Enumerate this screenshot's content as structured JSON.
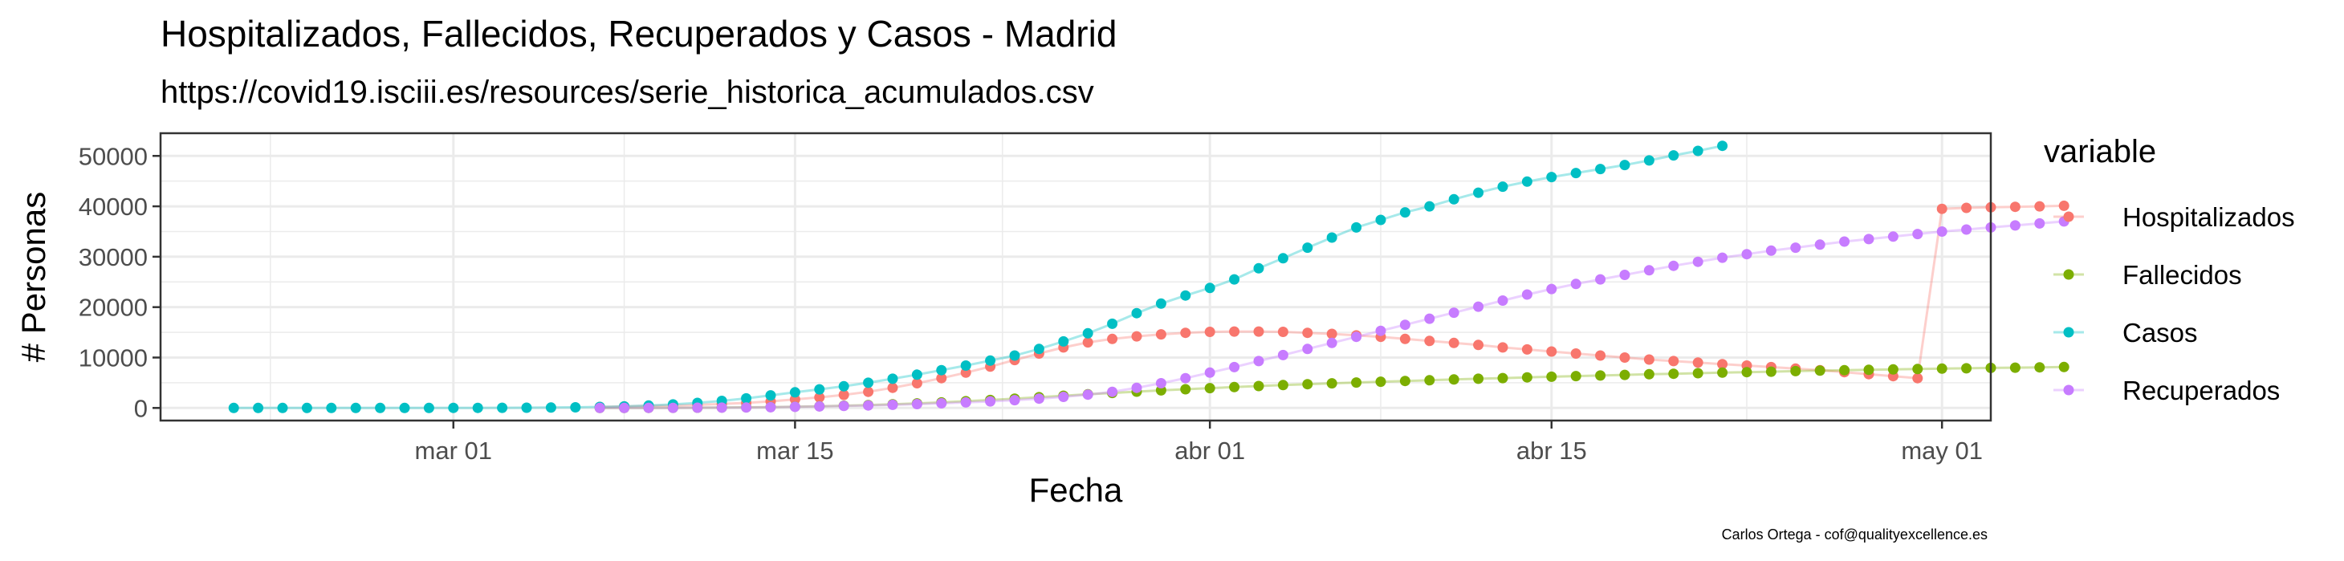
{
  "chart_data": {
    "type": "line",
    "title": "Hospitalizados, Fallecidos, Recuperados y Casos - Madrid",
    "subtitle": "https://covid19.isciii.es/resources/serie_historica_acumulados.csv",
    "xlabel": "Fecha",
    "ylabel": "# Personas",
    "caption": "Carlos Ortega - cof@qualityexcellence.es",
    "legend": {
      "title": "variable",
      "position": "right"
    },
    "grid": true,
    "x_ticks": [
      {
        "date": "2020-03-01",
        "label": "mar 01"
      },
      {
        "date": "2020-03-15",
        "label": "mar 15"
      },
      {
        "date": "2020-04-01",
        "label": "abr 01"
      },
      {
        "date": "2020-04-15",
        "label": "abr 15"
      },
      {
        "date": "2020-05-01",
        "label": "may 01"
      }
    ],
    "xlim": [
      "2020-02-18",
      "2020-05-03"
    ],
    "y_ticks": [
      0,
      10000,
      20000,
      30000,
      40000,
      50000
    ],
    "ylim": [
      -2500,
      54500
    ],
    "series": [
      {
        "name": "Hospitalizados",
        "color": "#F8766D",
        "start": "2020-03-07",
        "values": [
          200,
          300,
          400,
          500,
          600,
          800,
          1000,
          1300,
          1700,
          2100,
          2600,
          3200,
          4000,
          4900,
          5900,
          7000,
          8200,
          9500,
          10800,
          12000,
          13000,
          13700,
          14200,
          14600,
          14900,
          15100,
          15150,
          15150,
          15100,
          14900,
          14700,
          14400,
          14100,
          13700,
          13300,
          12900,
          12500,
          12000,
          11600,
          11200,
          10800,
          10400,
          10000,
          9600,
          9300,
          9000,
          8700,
          8400,
          8100,
          7800,
          7500,
          7100,
          6700,
          6300,
          5900,
          39500,
          39700,
          39800,
          39900,
          40000,
          40100
        ]
      },
      {
        "name": "Fallecidos",
        "color": "#7CAE00",
        "start": "2020-03-07",
        "values": [
          0,
          0,
          10,
          30,
          50,
          80,
          120,
          180,
          250,
          340,
          450,
          580,
          730,
          900,
          1100,
          1330,
          1580,
          1850,
          2130,
          2420,
          2700,
          2970,
          3230,
          3480,
          3710,
          3930,
          4140,
          4340,
          4530,
          4710,
          4880,
          5040,
          5200,
          5350,
          5500,
          5650,
          5790,
          5930,
          6060,
          6190,
          6320,
          6440,
          6560,
          6680,
          6790,
          6900,
          7000,
          7100,
          7200,
          7300,
          7400,
          7480,
          7560,
          7640,
          7720,
          7800,
          7870,
          7940,
          8000,
          8060,
          8120
        ]
      },
      {
        "name": "Casos",
        "color": "#00BFC4",
        "start": "2020-02-21",
        "values": [
          0,
          0,
          0,
          0,
          0,
          0,
          0,
          0,
          0,
          10,
          15,
          25,
          50,
          80,
          130,
          200,
          300,
          470,
          700,
          1000,
          1400,
          1900,
          2500,
          3100,
          3700,
          4300,
          5000,
          5800,
          6600,
          7500,
          8400,
          9400,
          10400,
          11700,
          13200,
          14800,
          16700,
          18800,
          20700,
          22300,
          23800,
          25500,
          27700,
          29700,
          31800,
          33800,
          35800,
          37300,
          38800,
          40000,
          41400,
          42700,
          43900,
          44900,
          45800,
          46600,
          47400,
          48200,
          49100,
          50100,
          51000,
          52000
        ]
      },
      {
        "name": "Recuperados",
        "color": "#C77CFF",
        "start": "2020-03-07",
        "values": [
          0,
          0,
          10,
          20,
          40,
          60,
          100,
          150,
          220,
          300,
          400,
          500,
          620,
          760,
          920,
          1100,
          1300,
          1550,
          1850,
          2200,
          2650,
          3200,
          4000,
          4900,
          5900,
          7000,
          8100,
          9300,
          10500,
          11700,
          12900,
          14100,
          15300,
          16500,
          17700,
          18900,
          20100,
          21300,
          22500,
          23600,
          24600,
          25500,
          26400,
          27300,
          28200,
          29000,
          29800,
          30500,
          31200,
          31800,
          32400,
          33000,
          33500,
          34000,
          34500,
          35000,
          35400,
          35800,
          36200,
          36600,
          37000
        ]
      }
    ]
  }
}
